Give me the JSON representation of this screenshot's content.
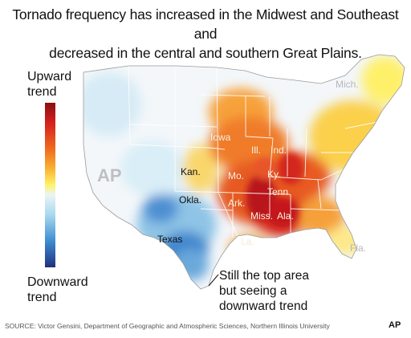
{
  "headline": {
    "line1": "Tornado frequency has increased in the Midwest and Southeast and",
    "line2": "decreased in the central and southern Great Plains."
  },
  "legend": {
    "top_line1": "Upward",
    "top_line2": "trend",
    "bottom_line1": "Downward",
    "bottom_line2": "trend",
    "colors": [
      "#8b0f10",
      "#d4201e",
      "#f06a1e",
      "#f9b233",
      "#fff36b",
      "#eaf4f6",
      "#a9d9ef",
      "#3d8dd2",
      "#20307f"
    ]
  },
  "map_labels": {
    "mich": "Mich.",
    "iowa": "Iowa",
    "ill": "Ill.",
    "ind": "Ind.",
    "kan": "Kan.",
    "mo": "Mo.",
    "ky": "Ky.",
    "tenn": "Tenn.",
    "okla": "Okla.",
    "ark": "Ark.",
    "miss": "Miss.",
    "ala": "Ala.",
    "texas": "Texas",
    "la": "La.",
    "fla": "Fla."
  },
  "watermark": "AP",
  "annotation": {
    "line1": "Still the top area",
    "line2": "but seeing a",
    "line3": "downward trend"
  },
  "source": "SOURCE: Victor Gensini, Department of Geographic and Atmospheric Sciences, Northern Illinois University",
  "ap_logo": "AP"
}
